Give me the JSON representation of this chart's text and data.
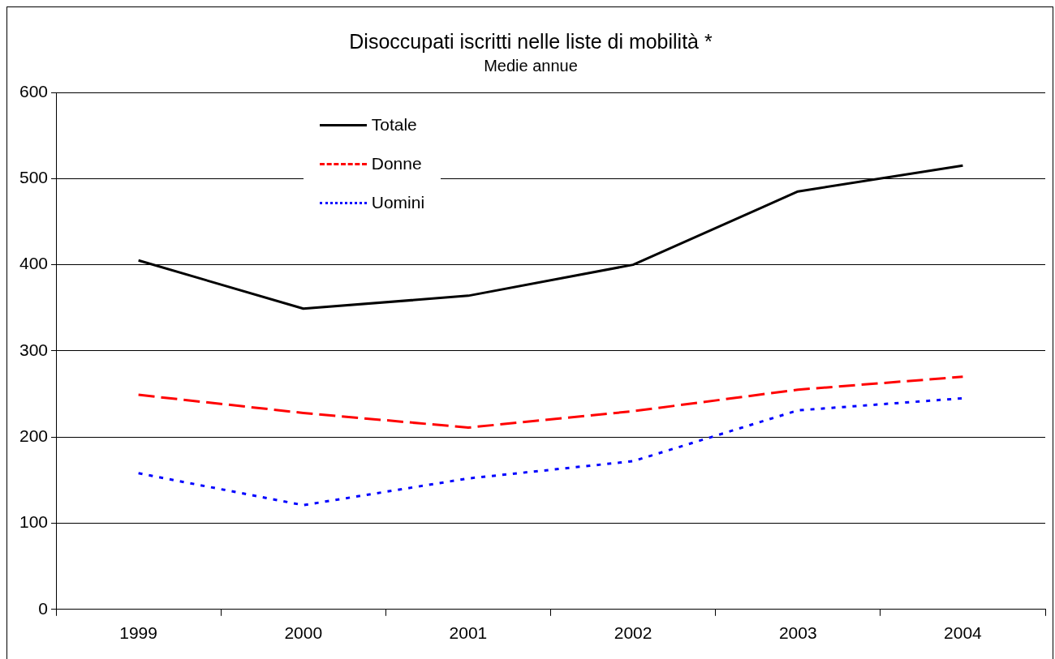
{
  "chart_data": {
    "type": "line",
    "title": "Disoccupati iscritti nelle liste di mobilità *",
    "subtitle": "Medie annue",
    "categories": [
      "1999",
      "2000",
      "2001",
      "2002",
      "2003",
      "2004"
    ],
    "series": [
      {
        "name": "Totale",
        "color": "#000000",
        "line_style": "solid",
        "values": [
          405,
          349,
          364,
          400,
          485,
          515
        ]
      },
      {
        "name": "Donne",
        "color": "#ff0000",
        "line_style": "dashed",
        "values": [
          249,
          228,
          211,
          230,
          255,
          270
        ]
      },
      {
        "name": "Uomini",
        "color": "#0000ff",
        "line_style": "dotted",
        "values": [
          158,
          121,
          152,
          172,
          231,
          245
        ]
      }
    ],
    "ylim": [
      0,
      600
    ],
    "yticks": [
      0,
      100,
      200,
      300,
      400,
      500,
      600
    ],
    "grid": "y",
    "legend": "top",
    "marker": "none"
  }
}
